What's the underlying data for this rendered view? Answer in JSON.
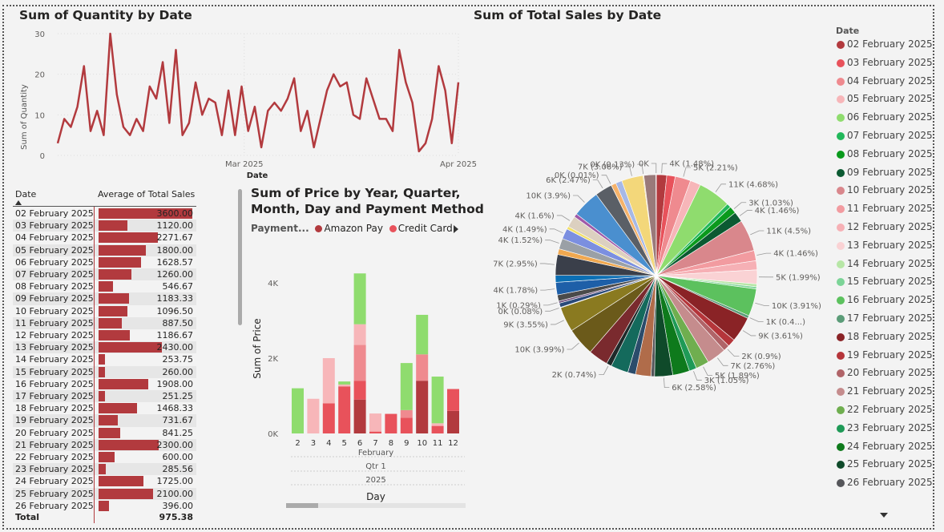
{
  "line_chart": {
    "title": "Sum of Quantity by Date",
    "ylabel": "Sum of Quantity",
    "xlabel": "Date",
    "y_ticks": [
      "0",
      "10",
      "20",
      "30"
    ],
    "x_ticks": [
      "Mar 2025",
      "Apr 2025"
    ]
  },
  "table": {
    "col_date": "Date",
    "col_value": "Average of Total Sales",
    "total_label": "Total",
    "total_value": "975.38",
    "rows": [
      {
        "date": "02 February 2025",
        "value": "3600.00",
        "num": 3600
      },
      {
        "date": "03 February 2025",
        "value": "1120.00",
        "num": 1120
      },
      {
        "date": "04 February 2025",
        "value": "2271.67",
        "num": 2271.67
      },
      {
        "date": "05 February 2025",
        "value": "1800.00",
        "num": 1800
      },
      {
        "date": "06 February 2025",
        "value": "1628.57",
        "num": 1628.57
      },
      {
        "date": "07 February 2025",
        "value": "1260.00",
        "num": 1260
      },
      {
        "date": "08 February 2025",
        "value": "546.67",
        "num": 546.67
      },
      {
        "date": "09 February 2025",
        "value": "1183.33",
        "num": 1183.33
      },
      {
        "date": "10 February 2025",
        "value": "1096.50",
        "num": 1096.5
      },
      {
        "date": "11 February 2025",
        "value": "887.50",
        "num": 887.5
      },
      {
        "date": "12 February 2025",
        "value": "1186.67",
        "num": 1186.67
      },
      {
        "date": "13 February 2025",
        "value": "2430.00",
        "num": 2430
      },
      {
        "date": "14 February 2025",
        "value": "253.75",
        "num": 253.75
      },
      {
        "date": "15 February 2025",
        "value": "260.00",
        "num": 260
      },
      {
        "date": "16 February 2025",
        "value": "1908.00",
        "num": 1908
      },
      {
        "date": "17 February 2025",
        "value": "251.25",
        "num": 251.25
      },
      {
        "date": "18 February 2025",
        "value": "1468.33",
        "num": 1468.33
      },
      {
        "date": "19 February 2025",
        "value": "731.67",
        "num": 731.67
      },
      {
        "date": "20 February 2025",
        "value": "841.25",
        "num": 841.25
      },
      {
        "date": "21 February 2025",
        "value": "2300.00",
        "num": 2300
      },
      {
        "date": "22 February 2025",
        "value": "600.00",
        "num": 600
      },
      {
        "date": "23 February 2025",
        "value": "285.56",
        "num": 285.56
      },
      {
        "date": "24 February 2025",
        "value": "1725.00",
        "num": 1725
      },
      {
        "date": "25 February 2025",
        "value": "2100.00",
        "num": 2100
      },
      {
        "date": "26 February 2025",
        "value": "396.00",
        "num": 396
      }
    ]
  },
  "bar_chart": {
    "title_line1": "Sum of Price by Year, Quarter,",
    "title_line2": "Month, Day and Payment Method",
    "legend_title": "Payment...",
    "legend_items": [
      {
        "name": "Amazon Pay",
        "color": "#b23a3e"
      },
      {
        "name": "Credit Card",
        "color": "#e8525b"
      }
    ],
    "ylabel": "Sum of Price",
    "xlabel": "Day",
    "y_ticks": [
      "0K",
      "2K",
      "4K"
    ],
    "x_group_month": "February",
    "x_group_qtr": "Qtr 1",
    "x_group_year": "2025"
  },
  "pie_chart": {
    "title": "Sum of Total Sales by Date",
    "legend_title": "Date",
    "legend_items": [
      {
        "name": "02 February 2025",
        "color": "#b23a3e"
      },
      {
        "name": "03 February 2025",
        "color": "#e8525b"
      },
      {
        "name": "04 February 2025",
        "color": "#ef8a8f"
      },
      {
        "name": "05 February 2025",
        "color": "#f7b6b9"
      },
      {
        "name": "06 February 2025",
        "color": "#8fdc6e"
      },
      {
        "name": "07 February 2025",
        "color": "#21b85a"
      },
      {
        "name": "08 February 2025",
        "color": "#0a9a1c"
      },
      {
        "name": "09 February 2025",
        "color": "#0b5a32"
      },
      {
        "name": "10 February 2025",
        "color": "#d9878c"
      },
      {
        "name": "11 February 2025",
        "color": "#f29ba0"
      },
      {
        "name": "12 February 2025",
        "color": "#f6b0b5"
      },
      {
        "name": "13 February 2025",
        "color": "#fad2d4"
      },
      {
        "name": "14 February 2025",
        "color": "#b7e6a6"
      },
      {
        "name": "15 February 2025",
        "color": "#7cd497"
      },
      {
        "name": "16 February 2025",
        "color": "#5cc15e"
      },
      {
        "name": "17 February 2025",
        "color": "#5b9c78"
      },
      {
        "name": "18 February 2025",
        "color": "#8a2326"
      },
      {
        "name": "19 February 2025",
        "color": "#b5353a"
      },
      {
        "name": "20 February 2025",
        "color": "#b06468"
      },
      {
        "name": "21 February 2025",
        "color": "#c58c8d"
      },
      {
        "name": "22 February 2025",
        "color": "#6fae4f"
      },
      {
        "name": "23 February 2025",
        "color": "#1f9a57"
      },
      {
        "name": "24 February 2025",
        "color": "#0e7a1c"
      },
      {
        "name": "25 February 2025",
        "color": "#0f4a2a"
      },
      {
        "name": "26 February 2025",
        "color": "#55565a"
      }
    ]
  },
  "chart_data": [
    {
      "type": "line",
      "title": "Sum of Quantity by Date",
      "xlabel": "Date",
      "ylabel": "Sum of Quantity",
      "ylim": [
        0,
        30
      ],
      "x_range": [
        "2025-02-02",
        "2025-04-01"
      ],
      "series": [
        {
          "values": [
            3,
            9,
            7,
            12,
            22,
            6,
            11,
            5,
            30,
            15,
            7,
            5,
            9,
            6,
            17,
            14,
            23,
            8,
            26,
            5,
            8,
            18,
            10,
            14,
            13,
            5,
            16,
            5,
            17,
            6,
            12,
            2,
            11,
            13,
            11,
            14,
            19,
            6,
            11,
            2,
            9,
            16,
            20,
            17,
            18,
            10,
            9,
            19,
            14,
            9,
            9,
            6,
            26,
            18,
            13,
            1,
            3,
            9,
            22,
            16,
            3,
            18
          ]
        }
      ]
    },
    {
      "type": "bar",
      "title": "Sum of Price by Year, Quarter, Month, Day and Payment Method",
      "xlabel": "Day",
      "ylabel": "Sum of Price",
      "ylim": [
        0,
        4500
      ],
      "categories": [
        "2",
        "3",
        "4",
        "5",
        "6",
        "7",
        "8",
        "9",
        "10",
        "11",
        "12"
      ],
      "series": [
        {
          "name": "Amazon Pay",
          "color": "#b23a3e",
          "values": [
            0,
            0,
            0,
            0,
            900,
            0,
            0,
            0,
            1400,
            0,
            600
          ]
        },
        {
          "name": "Credit Card",
          "color": "#e8525b",
          "values": [
            0,
            0,
            800,
            1250,
            500,
            50,
            520,
            420,
            0,
            200,
            580
          ]
        },
        {
          "name": "",
          "color": "#ef8a8f",
          "values": [
            0,
            0,
            0,
            0,
            950,
            0,
            0,
            200,
            700,
            0,
            0
          ]
        },
        {
          "name": "",
          "color": "#f7b6b9",
          "values": [
            0,
            920,
            1200,
            50,
            550,
            480,
            0,
            0,
            0,
            70,
            0
          ]
        },
        {
          "name": "",
          "color": "#8fdc6e",
          "values": [
            1200,
            0,
            0,
            80,
            1350,
            0,
            0,
            1250,
            1050,
            1240,
            0
          ]
        }
      ]
    },
    {
      "type": "pie",
      "title": "Sum of Total Sales by Date",
      "slices": [
        {
          "label": "4K (1.48%)",
          "value": 1.48,
          "color": "#b23a3e"
        },
        {
          "label": "",
          "value": 1.2,
          "color": "#e8525b"
        },
        {
          "label": "5K (2.21%)",
          "value": 2.21,
          "color": "#ef8a8f"
        },
        {
          "label": "",
          "value": 1.5,
          "color": "#f7b6b9"
        },
        {
          "label": "11K (4.68%)",
          "value": 4.68,
          "color": "#8fdc6e"
        },
        {
          "label": "",
          "value": 0.6,
          "color": "#21b85a"
        },
        {
          "label": "3K (1.03%)",
          "value": 1.03,
          "color": "#0a9a1c"
        },
        {
          "label": "4K (1.46%)",
          "value": 1.46,
          "color": "#0b5a32"
        },
        {
          "label": "11K (4.5%)",
          "value": 4.5,
          "color": "#d9878c"
        },
        {
          "label": "4K (1.46%)",
          "value": 1.46,
          "color": "#f29ba0"
        },
        {
          "label": "",
          "value": 1.3,
          "color": "#f6b0b5"
        },
        {
          "label": "5K (1.99%)",
          "value": 1.99,
          "color": "#fad2d4"
        },
        {
          "label": "",
          "value": 0.4,
          "color": "#b7e6a6"
        },
        {
          "label": "",
          "value": 0.3,
          "color": "#7cd497"
        },
        {
          "label": "10K (3.91%)",
          "value": 3.91,
          "color": "#5cc15e"
        },
        {
          "label": "1K (0.4...)",
          "value": 0.4,
          "color": "#5b9c78"
        },
        {
          "label": "9K (3.61%)",
          "value": 3.61,
          "color": "#8a2326"
        },
        {
          "label": "",
          "value": 1.1,
          "color": "#b5353a"
        },
        {
          "label": "2K (0.9%)",
          "value": 0.9,
          "color": "#b06468"
        },
        {
          "label": "7K (2.76%)",
          "value": 2.76,
          "color": "#c58c8d"
        },
        {
          "label": "5K (1.89%)",
          "value": 1.89,
          "color": "#6fae4f"
        },
        {
          "label": "3K (1.05%)",
          "value": 1.05,
          "color": "#1f9a57"
        },
        {
          "label": "",
          "value": 2.4,
          "color": "#0e7a1c"
        },
        {
          "label": "6K (2.58%)",
          "value": 2.58,
          "color": "#0f4a2a"
        },
        {
          "label": "",
          "value": 0.5,
          "color": "#55565a"
        },
        {
          "label": "",
          "value": 2.2,
          "color": "#b06c4a"
        },
        {
          "label": "",
          "value": 1.1,
          "color": "#2b4c6b"
        },
        {
          "label": "",
          "value": 2.5,
          "color": "#146a5c"
        },
        {
          "label": "2K (0.74%)",
          "value": 0.74,
          "color": "#1f2a2a"
        },
        {
          "label": "",
          "value": 2.8,
          "color": "#7a2a2e"
        },
        {
          "label": "10K (3.99%)",
          "value": 3.99,
          "color": "#6b5a1a"
        },
        {
          "label": "9K (3.55%)",
          "value": 3.55,
          "color": "#8a7a20"
        },
        {
          "label": "0K (0.08%)",
          "value": 0.08,
          "color": "#3b3b3b"
        },
        {
          "label": "",
          "value": 0.6,
          "color": "#2a4a7a"
        },
        {
          "label": "1K (0.29%)",
          "value": 0.29,
          "color": "#6a4a7a"
        },
        {
          "label": "",
          "value": 0.9,
          "color": "#4a4a4a"
        },
        {
          "label": "4K (1.78%)",
          "value": 1.78,
          "color": "#1e5fa8"
        },
        {
          "label": "",
          "value": 1.0,
          "color": "#0c6fb4"
        },
        {
          "label": "7K (2.95%)",
          "value": 2.95,
          "color": "#3a3f4a"
        },
        {
          "label": "",
          "value": 0.8,
          "color": "#f0a850"
        },
        {
          "label": "4K (1.52%)",
          "value": 1.52,
          "color": "#9aa0a6"
        },
        {
          "label": "4K (1.49%)",
          "value": 1.49,
          "color": "#7b8fe0"
        },
        {
          "label": "",
          "value": 0.4,
          "color": "#f2e06a"
        },
        {
          "label": "4K (1.6%)",
          "value": 1.6,
          "color": "#dcd0c0"
        },
        {
          "label": "",
          "value": 0.5,
          "color": "#a05aa8"
        },
        {
          "label": "10K (3.9%)",
          "value": 3.9,
          "color": "#4a8fcf"
        },
        {
          "label": "6K (2.47%)",
          "value": 2.47,
          "color": "#5a5f66"
        },
        {
          "label": "0K (0.01%)",
          "value": 0.01,
          "color": "#e0e0e0"
        },
        {
          "label": "",
          "value": 0.7,
          "color": "#f5b26a"
        },
        {
          "label": "",
          "value": 0.9,
          "color": "#a6b8e6"
        },
        {
          "label": "7K (3.06%)",
          "value": 3.06,
          "color": "#f3d77a"
        },
        {
          "label": "0K (0.13%)",
          "value": 0.13,
          "color": "#e0c890"
        },
        {
          "label": "",
          "value": 1.7,
          "color": "#9a7a7a"
        },
        {
          "label": "0K",
          "value": 0.05,
          "color": "#d2d2d2"
        }
      ]
    }
  ]
}
